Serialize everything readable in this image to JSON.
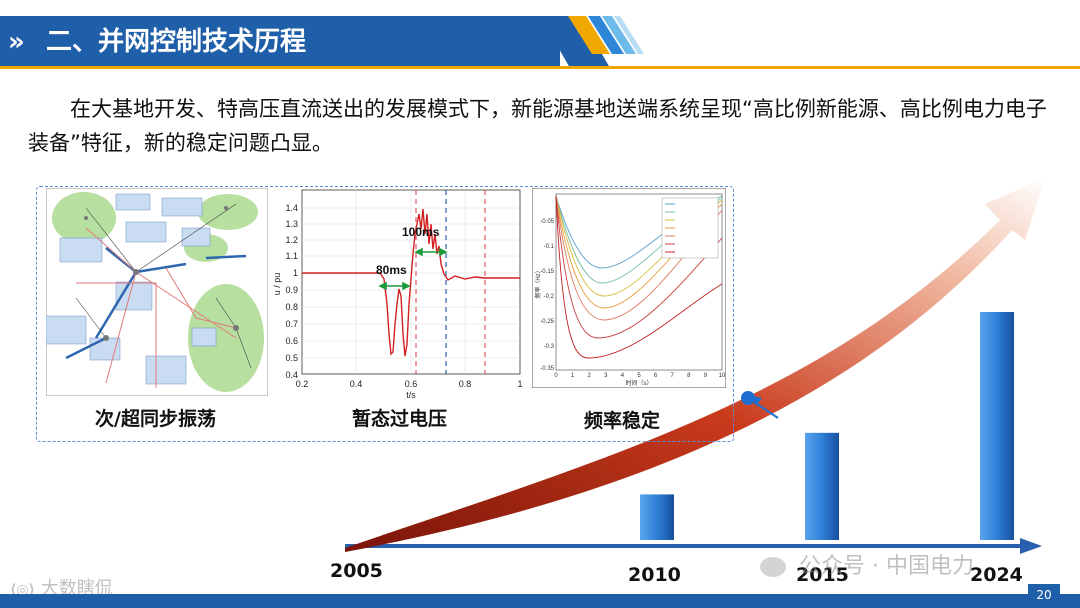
{
  "header": {
    "chevrons": "»",
    "title": "二、并网控制技术历程"
  },
  "intro": "在大基地开发、特高压直流送出的发展模式下，新能源基地送端系统呈现“高比例新能源、高比例电力电子装备”特征，新的稳定问题凸显。",
  "figures": [
    {
      "caption": "次/超同步振荡"
    },
    {
      "caption": "暂态过电压"
    },
    {
      "caption": "频率稳定"
    }
  ],
  "voltage_plot": {
    "ylabel": "u / pu",
    "xlabel": "t/s",
    "yticks": [
      "1.4",
      "1.3",
      "1.2",
      "1.1",
      "1",
      "0.9",
      "0.8",
      "0.7",
      "0.6",
      "0.5",
      "0.4"
    ],
    "xticks": [
      "0.2",
      "0.4",
      "0.6",
      "0.8",
      "1"
    ],
    "annotations": [
      "80ms",
      "100ms"
    ]
  },
  "freq_plot": {
    "yticks": [
      "-0.05",
      "-0.1",
      "-0.15",
      "-0.2",
      "-0.25",
      "-0.3",
      "-0.35"
    ],
    "xticks": [
      "0",
      "1",
      "2",
      "3",
      "4",
      "5",
      "6",
      "7",
      "8",
      "9",
      "10"
    ],
    "xlabel": "时间（s）",
    "ylabel": "频率（Hz）"
  },
  "years": [
    "2005",
    "2010",
    "2015",
    "2024"
  ],
  "growth": {
    "bars": [
      {
        "year": "2010",
        "level": 0.2
      },
      {
        "year": "2015",
        "level": 0.47
      },
      {
        "year": "2024",
        "level": 1.0
      }
    ]
  },
  "watermarks": {
    "left": "大数瞎侃",
    "right": "公众号 · 中国电力"
  },
  "page_number": "20",
  "colors": {
    "header_blue": "#1f5ea8",
    "accent_yellow": "#f0a800",
    "bar_blue": "#2f7fd8",
    "arrow_red": "#c0301a",
    "timeline_blue": "#2a5fb0"
  }
}
